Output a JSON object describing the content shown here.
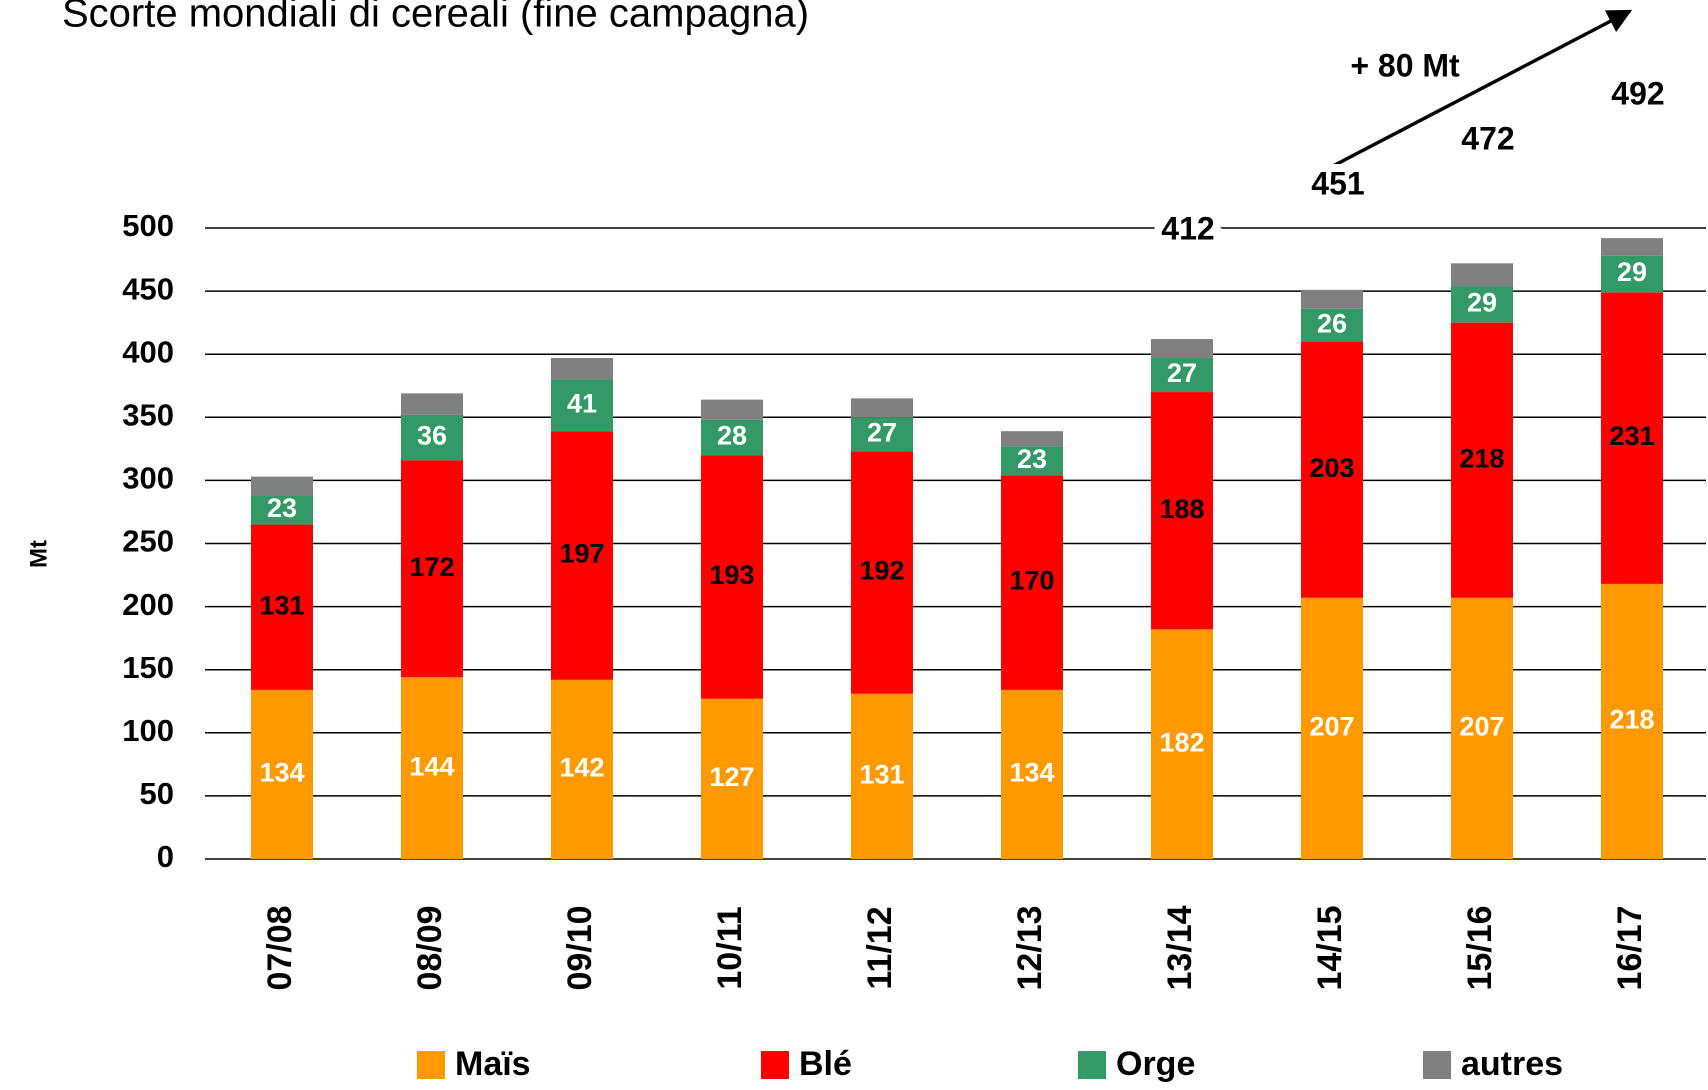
{
  "chart_data": {
    "type": "stacked_bar",
    "title": "Scorte mondiali di cereali (fine campagna)",
    "y_label": "Mt",
    "categories": [
      "07/08",
      "08/09",
      "09/10",
      "10/11",
      "11/12",
      "12/13",
      "13/14",
      "14/15",
      "15/16",
      "16/17"
    ],
    "series": [
      {
        "name": "Maïs",
        "color": "#ff9900",
        "label_color": "#ffffff",
        "values": [
          134,
          144,
          142,
          127,
          131,
          134,
          182,
          207,
          207,
          218
        ]
      },
      {
        "name": "Blé",
        "color": "#ff0000",
        "label_color": "#000000",
        "values": [
          131,
          172,
          197,
          193,
          192,
          170,
          188,
          203,
          218,
          231
        ]
      },
      {
        "name": "Orge",
        "color": "#339966",
        "label_color": "#ffffff",
        "values": [
          23,
          36,
          41,
          28,
          27,
          23,
          27,
          26,
          29,
          29
        ]
      },
      {
        "name": "autres",
        "color": "#808080",
        "values": [
          15,
          17,
          17,
          16,
          15,
          12,
          15,
          15,
          18,
          14
        ]
      }
    ],
    "totals": [
      null,
      null,
      null,
      null,
      null,
      null,
      412,
      451,
      472,
      492
    ],
    "annotation": "+ 80 Mt",
    "ylim": [
      0,
      500
    ],
    "yticks": [
      0,
      50,
      100,
      150,
      200,
      250,
      300,
      350,
      400,
      450,
      500
    ],
    "grid": true,
    "legend": "bottom"
  }
}
